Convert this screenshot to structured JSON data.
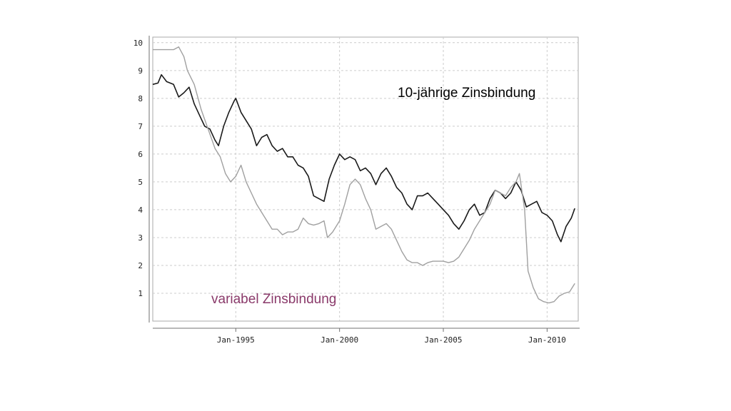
{
  "chart_data": {
    "type": "line",
    "title": "",
    "xlabel": "",
    "ylabel": "",
    "xlim": [
      "1991-01",
      "2011-07"
    ],
    "ylim": [
      0,
      10.2
    ],
    "grid": true,
    "y_ticks": [
      1,
      2,
      3,
      4,
      5,
      6,
      7,
      8,
      9,
      10
    ],
    "x_ticks": [
      {
        "label": "Jan-1995",
        "date": "1995-01"
      },
      {
        "label": "Jan-2000",
        "date": "2000-01"
      },
      {
        "label": "Jan-2005",
        "date": "2005-01"
      },
      {
        "label": "Jan-2010",
        "date": "2010-01"
      }
    ],
    "annotations": [
      {
        "text": "10-jährige Zinsbindung",
        "color": "#000000",
        "series": "10-jährige Zinsbindung"
      },
      {
        "text": "variabel Zinsbindung",
        "color": "#8a3a6a",
        "series": "variabel Zinsbindung"
      }
    ],
    "series": [
      {
        "name": "10-jährige Zinsbindung",
        "color": "#1a1a1a",
        "points": [
          [
            "1991-01",
            8.5
          ],
          [
            "1991-04",
            8.55
          ],
          [
            "1991-06",
            8.85
          ],
          [
            "1991-09",
            8.6
          ],
          [
            "1992-01",
            8.5
          ],
          [
            "1992-04",
            8.05
          ],
          [
            "1992-07",
            8.2
          ],
          [
            "1992-10",
            8.4
          ],
          [
            "1993-01",
            7.8
          ],
          [
            "1993-04",
            7.4
          ],
          [
            "1993-07",
            7.0
          ],
          [
            "1993-10",
            6.9
          ],
          [
            "1994-01",
            6.5
          ],
          [
            "1994-03",
            6.3
          ],
          [
            "1994-06",
            7.0
          ],
          [
            "1994-09",
            7.5
          ],
          [
            "1994-12",
            7.9
          ],
          [
            "1995-01",
            8.0
          ],
          [
            "1995-04",
            7.5
          ],
          [
            "1995-07",
            7.2
          ],
          [
            "1995-10",
            6.9
          ],
          [
            "1996-01",
            6.3
          ],
          [
            "1996-04",
            6.6
          ],
          [
            "1996-07",
            6.7
          ],
          [
            "1996-10",
            6.3
          ],
          [
            "1997-01",
            6.1
          ],
          [
            "1997-04",
            6.2
          ],
          [
            "1997-07",
            5.9
          ],
          [
            "1997-10",
            5.9
          ],
          [
            "1998-01",
            5.6
          ],
          [
            "1998-04",
            5.5
          ],
          [
            "1998-07",
            5.2
          ],
          [
            "1998-10",
            4.5
          ],
          [
            "1999-01",
            4.4
          ],
          [
            "1999-04",
            4.3
          ],
          [
            "1999-07",
            5.1
          ],
          [
            "1999-10",
            5.6
          ],
          [
            "2000-01",
            6.0
          ],
          [
            "2000-04",
            5.8
          ],
          [
            "2000-07",
            5.9
          ],
          [
            "2000-10",
            5.8
          ],
          [
            "2001-01",
            5.4
          ],
          [
            "2001-04",
            5.5
          ],
          [
            "2001-07",
            5.3
          ],
          [
            "2001-10",
            4.9
          ],
          [
            "2002-01",
            5.3
          ],
          [
            "2002-04",
            5.5
          ],
          [
            "2002-07",
            5.2
          ],
          [
            "2002-10",
            4.8
          ],
          [
            "2003-01",
            4.6
          ],
          [
            "2003-04",
            4.2
          ],
          [
            "2003-07",
            4.0
          ],
          [
            "2003-10",
            4.5
          ],
          [
            "2004-01",
            4.5
          ],
          [
            "2004-04",
            4.6
          ],
          [
            "2004-07",
            4.4
          ],
          [
            "2004-10",
            4.2
          ],
          [
            "2005-01",
            4.0
          ],
          [
            "2005-04",
            3.8
          ],
          [
            "2005-07",
            3.5
          ],
          [
            "2005-10",
            3.3
          ],
          [
            "2006-01",
            3.6
          ],
          [
            "2006-04",
            4.0
          ],
          [
            "2006-07",
            4.2
          ],
          [
            "2006-10",
            3.8
          ],
          [
            "2007-01",
            3.9
          ],
          [
            "2007-04",
            4.4
          ],
          [
            "2007-07",
            4.7
          ],
          [
            "2007-10",
            4.6
          ],
          [
            "2008-01",
            4.4
          ],
          [
            "2008-04",
            4.6
          ],
          [
            "2008-07",
            5.0
          ],
          [
            "2008-10",
            4.7
          ],
          [
            "2009-01",
            4.1
          ],
          [
            "2009-04",
            4.2
          ],
          [
            "2009-07",
            4.3
          ],
          [
            "2009-10",
            3.9
          ],
          [
            "2010-01",
            3.8
          ],
          [
            "2010-04",
            3.6
          ],
          [
            "2010-07",
            3.1
          ],
          [
            "2010-09",
            2.85
          ],
          [
            "2010-12",
            3.4
          ],
          [
            "2011-03",
            3.7
          ],
          [
            "2011-05",
            4.05
          ]
        ]
      },
      {
        "name": "variabel Zinsbindung",
        "color": "#a0a0a0",
        "points": [
          [
            "1991-01",
            9.75
          ],
          [
            "1991-06",
            9.75
          ],
          [
            "1992-01",
            9.75
          ],
          [
            "1992-04",
            9.85
          ],
          [
            "1992-07",
            9.5
          ],
          [
            "1992-09",
            9.0
          ],
          [
            "1993-01",
            8.5
          ],
          [
            "1993-05",
            7.6
          ],
          [
            "1993-09",
            6.9
          ],
          [
            "1994-01",
            6.2
          ],
          [
            "1994-04",
            5.9
          ],
          [
            "1994-07",
            5.3
          ],
          [
            "1994-10",
            5.0
          ],
          [
            "1995-01",
            5.2
          ],
          [
            "1995-04",
            5.6
          ],
          [
            "1995-07",
            5.0
          ],
          [
            "1995-10",
            4.6
          ],
          [
            "1996-01",
            4.2
          ],
          [
            "1996-04",
            3.9
          ],
          [
            "1996-07",
            3.6
          ],
          [
            "1996-10",
            3.3
          ],
          [
            "1997-01",
            3.3
          ],
          [
            "1997-04",
            3.1
          ],
          [
            "1997-07",
            3.2
          ],
          [
            "1997-10",
            3.2
          ],
          [
            "1998-01",
            3.3
          ],
          [
            "1998-04",
            3.7
          ],
          [
            "1998-07",
            3.5
          ],
          [
            "1998-10",
            3.45
          ],
          [
            "1999-01",
            3.5
          ],
          [
            "1999-04",
            3.6
          ],
          [
            "1999-06",
            3.0
          ],
          [
            "1999-09",
            3.2
          ],
          [
            "2000-01",
            3.6
          ],
          [
            "2000-04",
            4.2
          ],
          [
            "2000-07",
            4.9
          ],
          [
            "2000-10",
            5.1
          ],
          [
            "2001-01",
            4.9
          ],
          [
            "2001-04",
            4.4
          ],
          [
            "2001-07",
            4.0
          ],
          [
            "2001-10",
            3.3
          ],
          [
            "2002-01",
            3.4
          ],
          [
            "2002-04",
            3.5
          ],
          [
            "2002-07",
            3.3
          ],
          [
            "2002-10",
            2.9
          ],
          [
            "2003-01",
            2.5
          ],
          [
            "2003-04",
            2.2
          ],
          [
            "2003-07",
            2.1
          ],
          [
            "2003-10",
            2.1
          ],
          [
            "2004-01",
            2.0
          ],
          [
            "2004-04",
            2.1
          ],
          [
            "2004-07",
            2.15
          ],
          [
            "2004-10",
            2.15
          ],
          [
            "2005-01",
            2.15
          ],
          [
            "2005-04",
            2.1
          ],
          [
            "2005-07",
            2.15
          ],
          [
            "2005-10",
            2.3
          ],
          [
            "2006-01",
            2.6
          ],
          [
            "2006-04",
            2.9
          ],
          [
            "2006-07",
            3.3
          ],
          [
            "2006-10",
            3.6
          ],
          [
            "2007-01",
            3.9
          ],
          [
            "2007-04",
            4.2
          ],
          [
            "2007-07",
            4.7
          ],
          [
            "2007-10",
            4.6
          ],
          [
            "2008-01",
            4.5
          ],
          [
            "2008-04",
            4.8
          ],
          [
            "2008-07",
            5.0
          ],
          [
            "2008-09",
            5.3
          ],
          [
            "2008-12",
            4.0
          ],
          [
            "2009-02",
            1.8
          ],
          [
            "2009-05",
            1.2
          ],
          [
            "2009-08",
            0.8
          ],
          [
            "2009-11",
            0.7
          ],
          [
            "2010-02",
            0.65
          ],
          [
            "2010-05",
            0.7
          ],
          [
            "2010-08",
            0.9
          ],
          [
            "2010-11",
            1.0
          ],
          [
            "2011-02",
            1.05
          ],
          [
            "2011-05",
            1.35
          ]
        ]
      }
    ]
  }
}
